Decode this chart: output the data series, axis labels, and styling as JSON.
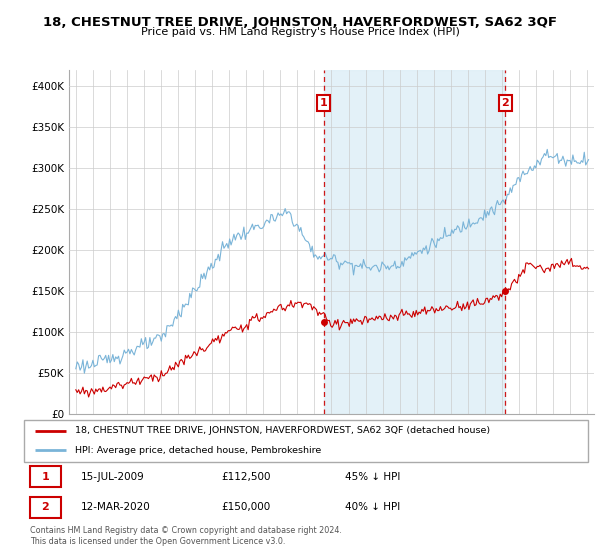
{
  "title": "18, CHESTNUT TREE DRIVE, JOHNSTON, HAVERFORDWEST, SA62 3QF",
  "subtitle": "Price paid vs. HM Land Registry's House Price Index (HPI)",
  "ylim": [
    0,
    420000
  ],
  "yticks": [
    0,
    50000,
    100000,
    150000,
    200000,
    250000,
    300000,
    350000,
    400000
  ],
  "ytick_labels": [
    "£0",
    "£50K",
    "£100K",
    "£150K",
    "£200K",
    "£250K",
    "£300K",
    "£350K",
    "£400K"
  ],
  "hpi_color": "#7ab4d8",
  "hpi_fill_color": "#ddeef7",
  "price_color": "#cc0000",
  "sale1_date": 2009.54,
  "sale1_price": 112500,
  "sale2_date": 2020.19,
  "sale2_price": 150000,
  "legend_house": "18, CHESTNUT TREE DRIVE, JOHNSTON, HAVERFORDWEST, SA62 3QF (detached house)",
  "legend_hpi": "HPI: Average price, detached house, Pembrokeshire",
  "footnote": "Contains HM Land Registry data © Crown copyright and database right 2024.\nThis data is licensed under the Open Government Licence v3.0.",
  "grid_color": "#cccccc",
  "shade_color": "#ddeef7"
}
